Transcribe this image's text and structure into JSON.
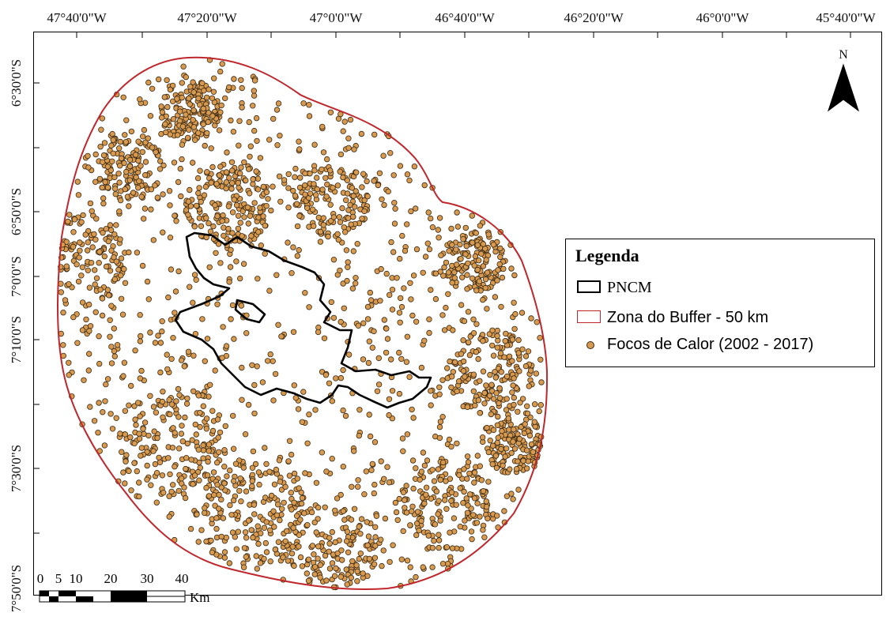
{
  "map": {
    "top_labels": [
      "47°40'0\"W",
      "47°20'0\"W",
      "47°0'0\"W",
      "46°40'0\"W",
      "46°20'0\"W",
      "46°0'0\"W",
      "45°40'0\"W"
    ],
    "left_labels": [
      "6°30'0\"S",
      "6°50'0\"S",
      "7°0'0\"S",
      "7°10'0\"S",
      "7°30'0\"S",
      "7°50'0\"S"
    ],
    "north_label": "N"
  },
  "legend": {
    "title": "Legenda",
    "items": [
      {
        "label": "PNCM",
        "symbol": "boundary-outline",
        "color": "#000000"
      },
      {
        "label": "Zona do Buffer - 50 km",
        "symbol": "buffer-outline",
        "color": "#c0272d"
      },
      {
        "label": "Focos de Calor (2002 - 2017)",
        "symbol": "point",
        "color": "#d89a4e"
      }
    ]
  },
  "scale_bar": {
    "ticks": [
      "0",
      "5",
      "10",
      "20",
      "30",
      "40"
    ],
    "unit": "Km"
  },
  "colors": {
    "buffer": "#c0272d",
    "park": "#000000",
    "fire_fill": "#d89a4e",
    "fire_stroke": "#3a2a16"
  }
}
